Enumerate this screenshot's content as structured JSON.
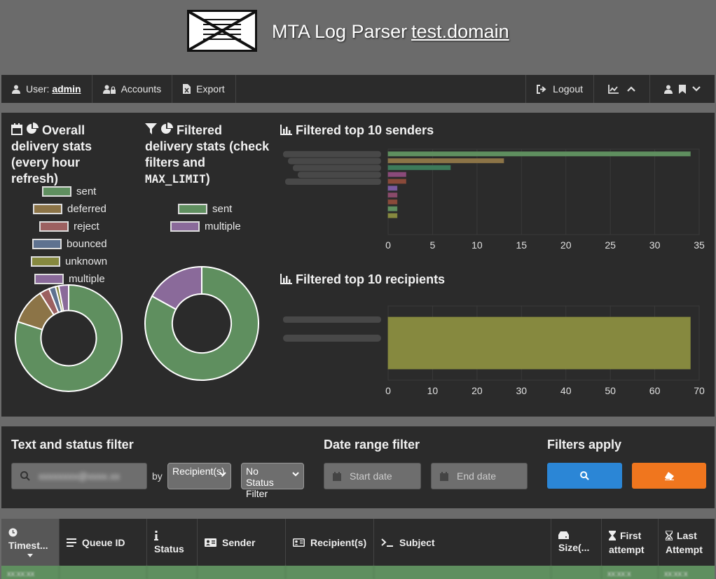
{
  "header": {
    "title": "MTA Log Parser",
    "domain": "test.domain"
  },
  "nav": {
    "user_prefix": "User: ",
    "user_name": "admin",
    "accounts": "Accounts",
    "export": "Export",
    "logout": "Logout"
  },
  "overall": {
    "title": "Overall delivery stats (every hour refresh)",
    "legend": [
      {
        "label": "sent",
        "color": "#5f8f5f"
      },
      {
        "label": "deferred",
        "color": "#8c7447"
      },
      {
        "label": "reject",
        "color": "#9c6060"
      },
      {
        "label": "bounced",
        "color": "#5e7290"
      },
      {
        "label": "unknown",
        "color": "#86893f"
      },
      {
        "label": "multiple",
        "color": "#8a6a9a"
      }
    ]
  },
  "filtered": {
    "title_line1": "Filtered",
    "title_line2": "delivery stats (check",
    "title_line3": "filters and",
    "title_code": "MAX_LIMIT",
    "title_end": ")",
    "legend": [
      {
        "label": "sent",
        "color": "#5f8f5f"
      },
      {
        "label": "multiple",
        "color": "#8a6a9a"
      }
    ]
  },
  "senders": {
    "title": "Filtered top 10 senders",
    "ticks": [
      "0",
      "5",
      "10",
      "15",
      "20",
      "25",
      "30",
      "35"
    ]
  },
  "recipients": {
    "title": "Filtered top 10 recipients",
    "ticks": [
      "0",
      "10",
      "20",
      "30",
      "40",
      "50",
      "60",
      "70"
    ]
  },
  "chart_data": [
    {
      "type": "pie",
      "title": "Overall delivery stats (every hour refresh)",
      "categories": [
        "sent",
        "deferred",
        "reject",
        "bounced",
        "unknown",
        "multiple"
      ],
      "values": [
        80,
        11,
        3,
        2,
        1,
        3
      ]
    },
    {
      "type": "pie",
      "title": "Filtered delivery stats (check filters and MAX_LIMIT)",
      "categories": [
        "sent",
        "multiple"
      ],
      "values": [
        83,
        17
      ]
    },
    {
      "type": "bar",
      "title": "Filtered top 10 senders",
      "orientation": "horizontal",
      "xlim": [
        0,
        35
      ],
      "values": [
        34,
        13,
        7,
        2,
        2,
        1,
        1,
        1,
        1,
        1
      ],
      "colors": [
        "#5f8f5f",
        "#8c7447",
        "#3d7a5a",
        "#8a4a7a",
        "#8a4a3a",
        "#7a5aa0",
        "#8a4a6a",
        "#8a4a3a",
        "#5f8f5f",
        "#86893f"
      ]
    },
    {
      "type": "bar",
      "title": "Filtered top 10 recipients",
      "orientation": "horizontal",
      "xlim": [
        0,
        70
      ],
      "values": [
        68
      ],
      "colors": [
        "#86893f"
      ]
    }
  ],
  "filters": {
    "text_title": "Text and status filter",
    "by": "by",
    "recipient_select": "Recipient(s)",
    "status_select": "No Status Filter",
    "date_title": "Date range filter",
    "start_placeholder": "Start date",
    "end_placeholder": "End date",
    "apply_title": "Filters apply"
  },
  "table": {
    "columns": [
      "Timest...",
      "Queue ID",
      "Status",
      "Sender",
      "Recipient(s)",
      "Subject",
      "Size(...",
      "First attempt",
      "Last Attempt"
    ],
    "first_attempt_1": "First",
    "first_attempt_2": "attempt",
    "last_attempt_1": "Last",
    "last_attempt_2": "Attempt"
  }
}
